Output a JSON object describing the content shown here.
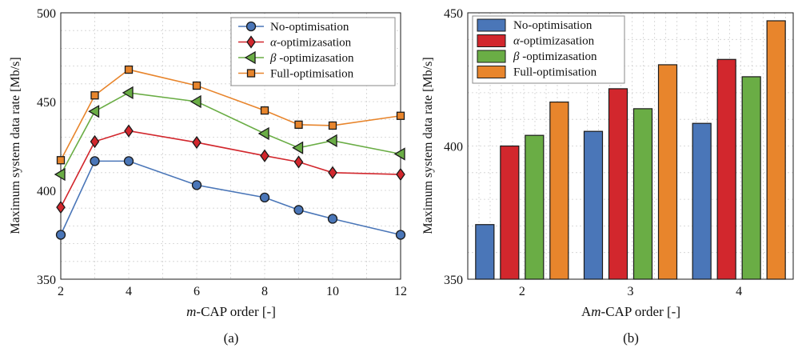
{
  "colors": {
    "blue": "#4a76b8",
    "red": "#d2272d",
    "green": "#6aad45",
    "orange": "#e8852c",
    "grid": "#d0d0d0",
    "edge": "#1a1a1a"
  },
  "chart_data": [
    {
      "type": "line",
      "caption": "(a)",
      "xlabel_italic": "m",
      "xlabel_rest": "-CAP order [-]",
      "ylabel": "Maximum system data rate [Mb/s]",
      "xlim": [
        2,
        12
      ],
      "ylim": [
        350,
        500
      ],
      "xticks": [
        2,
        4,
        6,
        8,
        10,
        12
      ],
      "yticks": [
        350,
        400,
        450,
        500
      ],
      "grid": true,
      "legend_position": "top-right",
      "x": [
        2,
        3,
        4,
        6,
        8,
        9,
        10,
        12
      ],
      "series": [
        {
          "prefix": "",
          "name": "No-optimisation",
          "marker": "circle",
          "color": "#4a76b8",
          "values": [
            375,
            416.5,
            416.5,
            403,
            396,
            389,
            384,
            375
          ]
        },
        {
          "prefix": "α",
          "name": "-optimizasation",
          "marker": "diamond",
          "color": "#d2272d",
          "values": [
            390.5,
            427.5,
            433.5,
            427,
            419.5,
            416,
            410,
            409
          ]
        },
        {
          "prefix": "β",
          "name": " -optimizasation",
          "marker": "triangle-left",
          "color": "#6aad45",
          "values": [
            409,
            444.5,
            455,
            450,
            432,
            424,
            428,
            420.5
          ]
        },
        {
          "prefix": "",
          "name": "Full-optimisation",
          "marker": "square",
          "color": "#e8852c",
          "values": [
            417,
            453.5,
            468,
            459,
            445,
            437,
            436.5,
            442
          ]
        }
      ]
    },
    {
      "type": "bar",
      "caption": "(b)",
      "xlabel_pre": "A",
      "xlabel_italic": "m",
      "xlabel_rest": "-CAP order [-]",
      "ylabel": "Maximum system data rate [Mb/s]",
      "ylim": [
        350,
        450
      ],
      "yticks": [
        350,
        400,
        450
      ],
      "grid": true,
      "legend_position": "top-left",
      "categories": [
        "2",
        "3",
        "4"
      ],
      "series": [
        {
          "prefix": "",
          "name": "No-optimisation",
          "color": "#4a76b8",
          "values": [
            370.5,
            405.5,
            408.5
          ]
        },
        {
          "prefix": "α",
          "name": "-optimizasation",
          "color": "#d2272d",
          "values": [
            400,
            421.5,
            432.5
          ]
        },
        {
          "prefix": "β",
          "name": " -optimizasation",
          "color": "#6aad45",
          "values": [
            404,
            414,
            426
          ]
        },
        {
          "prefix": "",
          "name": "Full-optimisation",
          "color": "#e8852c",
          "values": [
            416.5,
            430.5,
            447
          ]
        }
      ]
    }
  ]
}
